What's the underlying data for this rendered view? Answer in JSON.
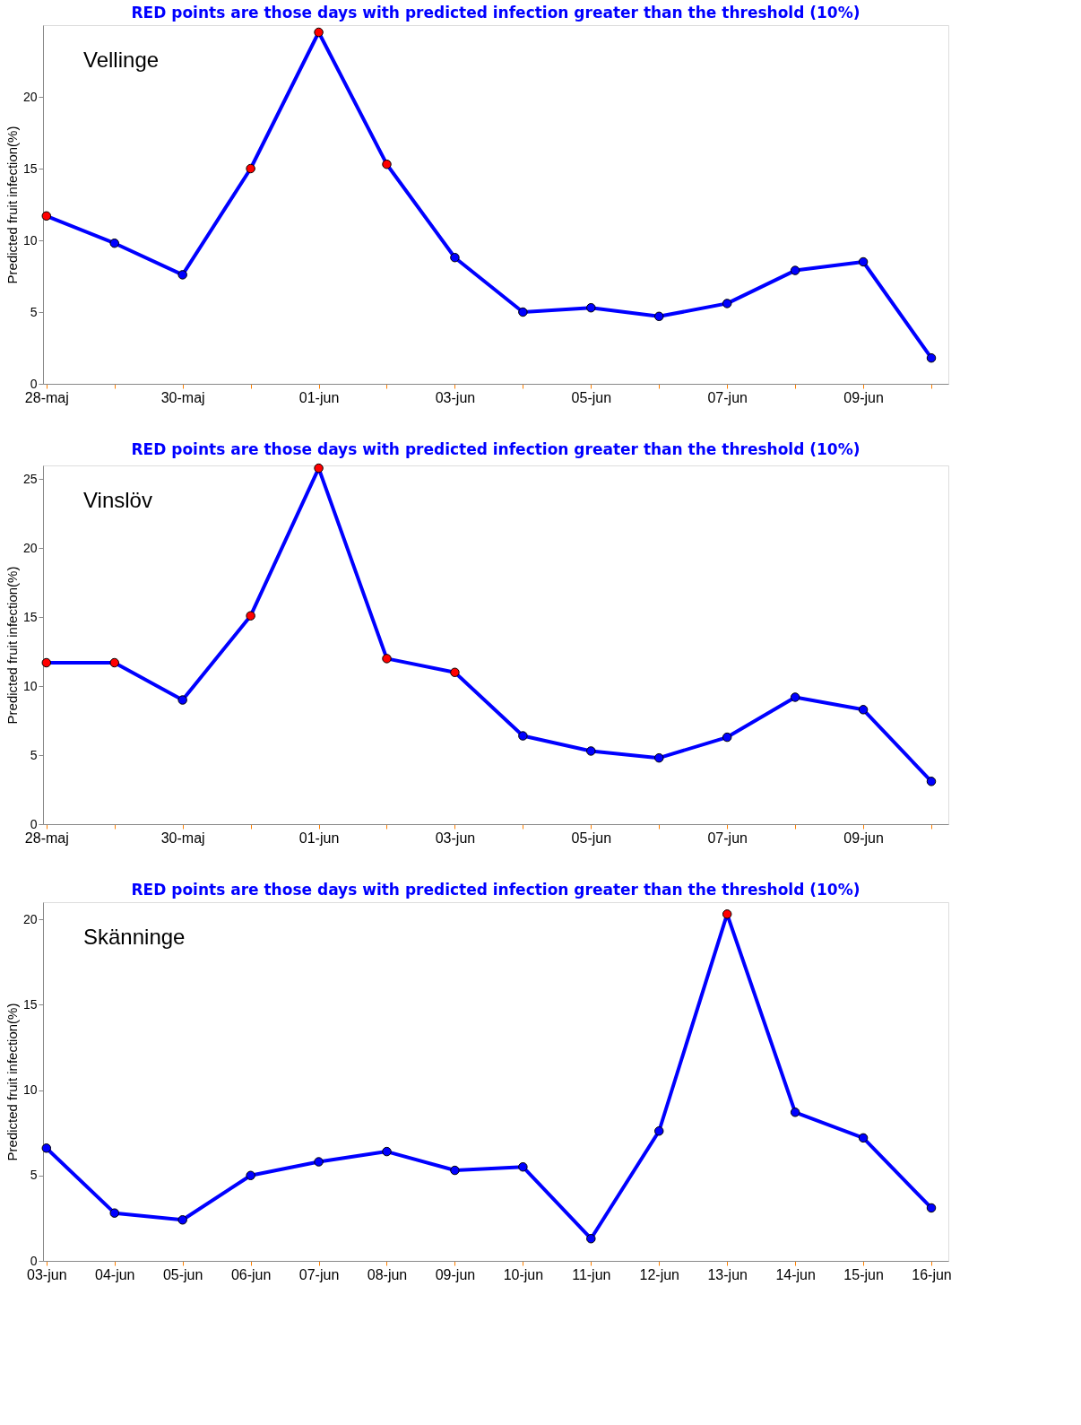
{
  "chart_data": [
    {
      "type": "line",
      "title": "RED points are those days with predicted infection greater than the threshold (10%)",
      "ylabel": "Predicted fruit infection(%)",
      "annotations": [
        "Vellinge"
      ],
      "categories": [
        "28-maj",
        null,
        "30-maj",
        null,
        "01-jun",
        null,
        "03-jun",
        null,
        "05-jun",
        null,
        "07-jun",
        null,
        "09-jun",
        null
      ],
      "series": [
        {
          "color": "#0000ff",
          "values": [
            11.7,
            9.8,
            7.6,
            15.0,
            24.5,
            15.3,
            8.8,
            5.0,
            5.3,
            4.7,
            5.6,
            7.9,
            8.5,
            1.8
          ],
          "colors": [
            "#ff0000",
            "#0000ff",
            "#0000ff",
            "#ff0000",
            "#ff0000",
            "#ff0000",
            "#0000ff",
            "#0000ff",
            "#0000ff",
            "#0000ff",
            "#0000ff",
            "#0000ff",
            "#0000ff",
            "#0000ff"
          ]
        }
      ],
      "ylim": [
        0,
        25
      ],
      "yticks": [
        0,
        5,
        10,
        15,
        20
      ],
      "grid": false,
      "marker": "circle"
    },
    {
      "type": "line",
      "title": "RED points are those days with predicted infection greater than the threshold (10%)",
      "ylabel": "Predicted fruit infection(%)",
      "annotations": [
        "Vinslöv"
      ],
      "categories": [
        "28-maj",
        null,
        "30-maj",
        null,
        "01-jun",
        null,
        "03-jun",
        null,
        "05-jun",
        null,
        "07-jun",
        null,
        "09-jun",
        null
      ],
      "series": [
        {
          "color": "#0000ff",
          "values": [
            11.7,
            11.7,
            9.0,
            15.1,
            25.8,
            12.0,
            11.0,
            6.4,
            5.3,
            4.8,
            6.3,
            9.2,
            8.3,
            3.1
          ],
          "colors": [
            "#ff0000",
            "#ff0000",
            "#0000ff",
            "#ff0000",
            "#ff0000",
            "#ff0000",
            "#ff0000",
            "#0000ff",
            "#0000ff",
            "#0000ff",
            "#0000ff",
            "#0000ff",
            "#0000ff",
            "#0000ff"
          ]
        }
      ],
      "ylim": [
        0,
        26
      ],
      "yticks": [
        0,
        5,
        10,
        15,
        20,
        25
      ],
      "grid": false,
      "marker": "circle"
    },
    {
      "type": "line",
      "title": "RED points are those days with predicted infection greater than the threshold (10%)",
      "ylabel": "Predicted fruit infection(%)",
      "annotations": [
        "Skänninge"
      ],
      "categories": [
        "03-jun",
        "04-jun",
        "05-jun",
        "06-jun",
        "07-jun",
        "08-jun",
        "09-jun",
        "10-jun",
        "11-jun",
        "12-jun",
        "13-jun",
        "14-jun",
        "15-jun",
        "16-jun"
      ],
      "series": [
        {
          "color": "#0000ff",
          "values": [
            6.6,
            2.8,
            2.4,
            5.0,
            5.8,
            6.4,
            5.3,
            5.5,
            1.3,
            7.6,
            20.3,
            8.7,
            7.2,
            3.1
          ],
          "colors": [
            "#0000ff",
            "#0000ff",
            "#0000ff",
            "#0000ff",
            "#0000ff",
            "#0000ff",
            "#0000ff",
            "#0000ff",
            "#0000ff",
            "#0000ff",
            "#ff0000",
            "#0000ff",
            "#0000ff",
            "#0000ff"
          ]
        }
      ],
      "ylim": [
        0,
        21
      ],
      "yticks": [
        0,
        5,
        10,
        15,
        20
      ],
      "grid": false,
      "marker": "circle"
    }
  ]
}
